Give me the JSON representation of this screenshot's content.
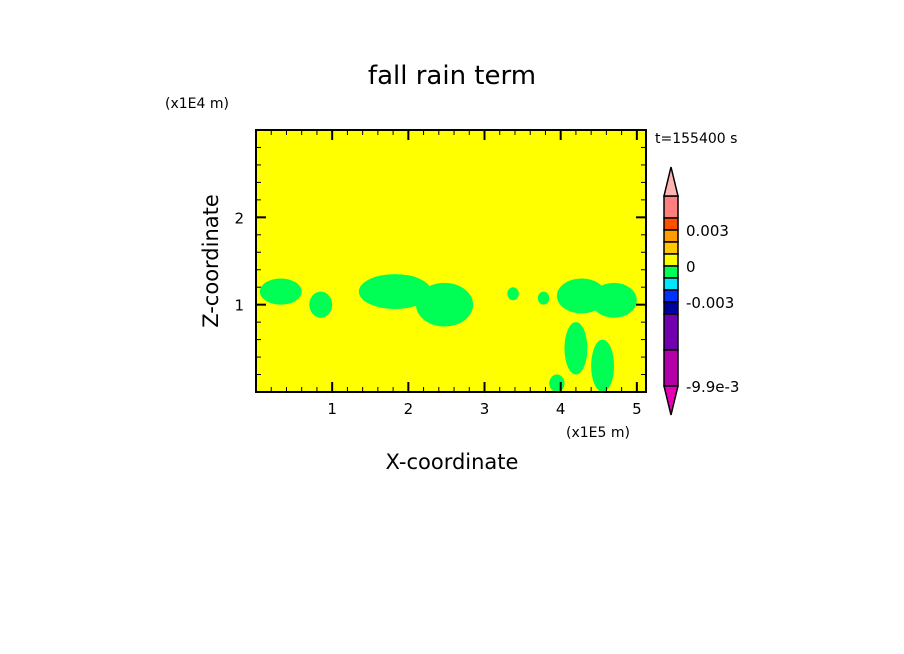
{
  "chart_data": {
    "type": "heatmap",
    "title": "fall rain term",
    "xlabel": "X-coordinate",
    "ylabel": "Z-coordinate",
    "x_unit": "(x1E5 m)",
    "y_unit": "(x1E4 m)",
    "time_label": "t=155400 s",
    "xlim": [
      0,
      5.12
    ],
    "ylim": [
      0,
      3
    ],
    "x_ticks": [
      1,
      2,
      3,
      4,
      5
    ],
    "y_ticks": [
      1,
      2
    ],
    "background_color": "#ffff00",
    "background_level": "0 to 0.001",
    "feature_color": "#00ff55",
    "feature_level": "-0.001 to 0",
    "features": [
      {
        "x": [
          0.05,
          0.6
        ],
        "z": [
          1.0,
          1.3
        ]
      },
      {
        "x": [
          0.7,
          1.0
        ],
        "z": [
          0.85,
          1.15
        ]
      },
      {
        "x": [
          1.35,
          2.3
        ],
        "z": [
          0.95,
          1.35
        ]
      },
      {
        "x": [
          2.1,
          2.85
        ],
        "z": [
          0.75,
          1.25
        ]
      },
      {
        "x": [
          3.3,
          3.45
        ],
        "z": [
          1.05,
          1.2
        ]
      },
      {
        "x": [
          3.7,
          3.85
        ],
        "z": [
          1.0,
          1.15
        ]
      },
      {
        "x": [
          3.95,
          4.6
        ],
        "z": [
          0.9,
          1.3
        ]
      },
      {
        "x": [
          4.4,
          5.0
        ],
        "z": [
          0.85,
          1.25
        ]
      },
      {
        "x": [
          4.05,
          4.35
        ],
        "z": [
          0.2,
          0.8
        ]
      },
      {
        "x": [
          4.4,
          4.7
        ],
        "z": [
          0.0,
          0.6
        ]
      },
      {
        "x": [
          3.85,
          4.05
        ],
        "z": [
          0.0,
          0.2
        ]
      }
    ],
    "colorbar": {
      "labels": [
        {
          "value": 0.003,
          "text": "0.003"
        },
        {
          "value": 0,
          "text": "0"
        },
        {
          "value": -0.003,
          "text": "-0.003"
        },
        {
          "value": -0.0099,
          "text": "-9.9e-3"
        }
      ],
      "overflow_top_color": "#ffb4b4",
      "underflow_bottom_color": "#e800b4",
      "bands": [
        {
          "range": [
            0.004,
            0.006
          ],
          "color": "#ff7f7f"
        },
        {
          "range": [
            0.003,
            0.004
          ],
          "color": "#ff5000"
        },
        {
          "range": [
            0.002,
            0.003
          ],
          "color": "#ff9c00"
        },
        {
          "range": [
            0.001,
            0.002
          ],
          "color": "#ffc800"
        },
        {
          "range": [
            0,
            0.001
          ],
          "color": "#ffff00"
        },
        {
          "range": [
            -0.001,
            0
          ],
          "color": "#00ff55"
        },
        {
          "range": [
            -0.002,
            -0.001
          ],
          "color": "#00e6ff"
        },
        {
          "range": [
            -0.003,
            -0.002
          ],
          "color": "#0032ff"
        },
        {
          "range": [
            -0.004,
            -0.003
          ],
          "color": "#0000a0"
        },
        {
          "range": [
            -0.007,
            -0.004
          ],
          "color": "#7000b0"
        },
        {
          "range": [
            -0.0099,
            -0.007
          ],
          "color": "#b400a8"
        }
      ]
    }
  }
}
